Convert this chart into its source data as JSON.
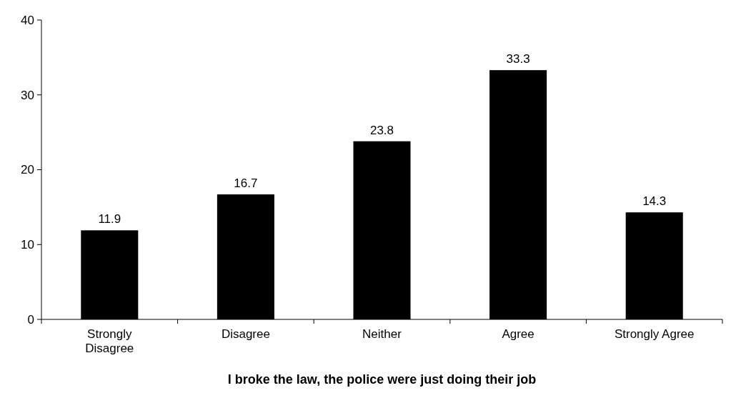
{
  "chart_data": {
    "type": "bar",
    "xlabel": "I broke the law, the police were just doing their job",
    "categories": [
      "Strongly Disagree",
      "Disagree",
      "Neither",
      "Agree",
      "Strongly Agree"
    ],
    "values": [
      11.9,
      16.7,
      23.8,
      33.3,
      14.3
    ],
    "color": "#000000",
    "ylim": [
      0,
      40
    ],
    "yticks": [
      0,
      10,
      20,
      30,
      40
    ],
    "data_labels": true
  }
}
